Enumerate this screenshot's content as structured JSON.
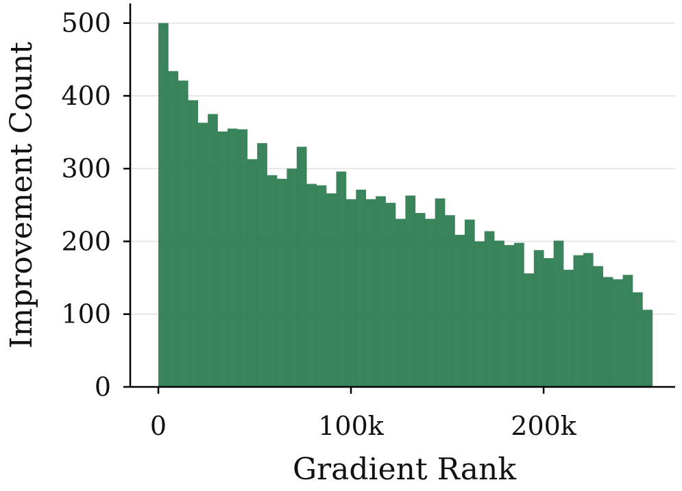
{
  "chart_data": {
    "type": "histogram",
    "x_label": "Gradient Rank",
    "y_label": "Improvement Count",
    "bins": [
      0,
      5130,
      10260,
      15390,
      20520,
      25650,
      30780,
      35910,
      41040,
      46170,
      51300,
      56430,
      61560,
      66690,
      71820,
      76950,
      82080,
      87210,
      92340,
      97470,
      102600,
      107730,
      112860,
      117990,
      123120,
      128250,
      133380,
      138510,
      143640,
      148770,
      153900,
      159030,
      164160,
      169290,
      174420,
      179550,
      184680,
      189810,
      194940,
      200070,
      205200,
      210330,
      215460,
      220590,
      225720,
      230850,
      235980,
      241110,
      246240,
      251370,
      256500
    ],
    "values": [
      500,
      434,
      421,
      394,
      363,
      375,
      351,
      355,
      354,
      313,
      335,
      291,
      286,
      300,
      330,
      279,
      277,
      266,
      296,
      258,
      271,
      258,
      262,
      253,
      231,
      263,
      239,
      231,
      259,
      236,
      209,
      230,
      200,
      214,
      201,
      195,
      198,
      156,
      188,
      177,
      201,
      161,
      181,
      184,
      166,
      151,
      148,
      154,
      130,
      106
    ],
    "color": "#2e7d52",
    "xlim": [
      -14600,
      268300
    ],
    "ylim": [
      0,
      527
    ],
    "xticks": [
      0,
      {
        "value": 100000,
        "label": "100k"
      },
      {
        "value": 200000,
        "label": "200k"
      }
    ],
    "yticks": [
      0,
      100,
      200,
      300,
      400,
      500
    ],
    "grid": true
  }
}
